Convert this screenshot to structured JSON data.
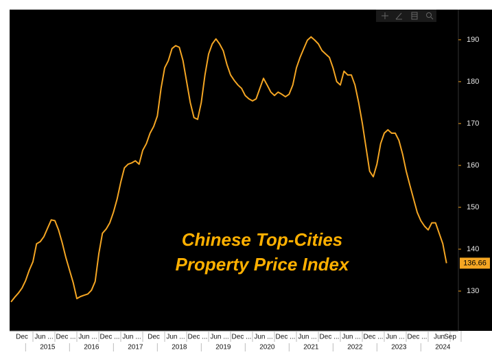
{
  "chart_data": {
    "type": "line",
    "annotation": [
      "Chinese Top-Cities",
      "Property Price Index"
    ],
    "x": [
      "2014-09",
      "2014-10",
      "2014-11",
      "2014-12",
      "2015-01",
      "2015-02",
      "2015-03",
      "2015-04",
      "2015-05",
      "2015-06",
      "2015-07",
      "2015-08",
      "2015-09",
      "2015-10",
      "2015-11",
      "2015-12",
      "2016-01",
      "2016-02",
      "2016-03",
      "2016-04",
      "2016-05",
      "2016-06",
      "2016-07",
      "2016-08",
      "2016-09",
      "2016-10",
      "2016-11",
      "2016-12",
      "2017-01",
      "2017-02",
      "2017-03",
      "2017-04",
      "2017-05",
      "2017-06",
      "2017-07",
      "2017-08",
      "2017-09",
      "2017-10",
      "2017-11",
      "2017-12",
      "2018-01",
      "2018-02",
      "2018-03",
      "2018-04",
      "2018-05",
      "2018-06",
      "2018-07",
      "2018-08",
      "2018-09",
      "2018-10",
      "2018-11",
      "2018-12",
      "2019-01",
      "2019-02",
      "2019-03",
      "2019-04",
      "2019-05",
      "2019-06",
      "2019-07",
      "2019-08",
      "2019-09",
      "2019-10",
      "2019-11",
      "2019-12",
      "2020-01",
      "2020-02",
      "2020-03",
      "2020-04",
      "2020-05",
      "2020-06",
      "2020-07",
      "2020-08",
      "2020-09",
      "2020-10",
      "2020-11",
      "2020-12",
      "2021-01",
      "2021-02",
      "2021-03",
      "2021-04",
      "2021-05",
      "2021-06",
      "2021-07",
      "2021-08",
      "2021-09",
      "2021-10",
      "2021-11",
      "2021-12",
      "2022-01",
      "2022-02",
      "2022-03",
      "2022-04",
      "2022-05",
      "2022-06",
      "2022-07",
      "2022-08",
      "2022-09",
      "2022-10",
      "2022-11",
      "2022-12",
      "2023-01",
      "2023-02",
      "2023-03",
      "2023-04",
      "2023-05",
      "2023-06",
      "2023-07",
      "2023-08",
      "2023-09",
      "2023-10",
      "2023-11",
      "2023-12",
      "2024-01",
      "2024-02",
      "2024-03",
      "2024-04",
      "2024-05",
      "2024-06",
      "2024-07",
      "2024-08"
    ],
    "series": [
      {
        "color": "#f5a623",
        "values": [
          127.4,
          128.5,
          129.5,
          130.7,
          132.5,
          135,
          137,
          141.3,
          141.8,
          143,
          145,
          147,
          146.8,
          144.6,
          141.5,
          138,
          135,
          132,
          128.2,
          128.7,
          129,
          129.3,
          130.2,
          132.3,
          138.9,
          143.8,
          144.8,
          146.3,
          148.8,
          152,
          156,
          159.4,
          160.3,
          160.6,
          161.1,
          160.3,
          163.6,
          165.2,
          167.7,
          169.3,
          171.8,
          178.4,
          183.3,
          185,
          187.9,
          188.6,
          188.2,
          185,
          180,
          175,
          171.4,
          171,
          175,
          181.6,
          186.6,
          189,
          190.2,
          189,
          187.4,
          184.1,
          181.6,
          180.3,
          179.2,
          178.4,
          176.7,
          175.9,
          175.4,
          175.9,
          178.4,
          180.8,
          179.2,
          177.5,
          176.7,
          177.5,
          177,
          176.4,
          177,
          179.2,
          183.3,
          185.8,
          187.9,
          189.9,
          190.7,
          189.9,
          189,
          187.4,
          186.6,
          185.8,
          183.3,
          180,
          179.2,
          182.5,
          181.6,
          181.6,
          179.2,
          175,
          170.1,
          164.4,
          158.6,
          157.3,
          160.3,
          165.2,
          167.7,
          168.5,
          167.7,
          167.7,
          166,
          162.7,
          158.6,
          155.3,
          152,
          148.8,
          146.8,
          145.5,
          144.6,
          146.3,
          146.3,
          143.8,
          141.3,
          136.66
        ]
      }
    ],
    "ylim": [
      120.5,
      197.2
    ],
    "yticks": [
      130,
      140,
      150,
      160,
      170,
      180,
      190
    ],
    "xticks": [
      {
        "value": "2014-12",
        "label": "Dec"
      },
      {
        "value": "2015-06",
        "label": "Jun ..."
      },
      {
        "value": "2015-12",
        "label": "Dec ..."
      },
      {
        "value": "2016-06",
        "label": "Jun ..."
      },
      {
        "value": "2016-12",
        "label": "Dec ..."
      },
      {
        "value": "2017-06",
        "label": "Jun ..."
      },
      {
        "value": "2017-12",
        "label": "Dec"
      },
      {
        "value": "2018-06",
        "label": "Jun ..."
      },
      {
        "value": "2018-12",
        "label": "Dec ..."
      },
      {
        "value": "2019-06",
        "label": "Jun ..."
      },
      {
        "value": "2019-12",
        "label": "Dec ..."
      },
      {
        "value": "2020-06",
        "label": "Jun ..."
      },
      {
        "value": "2020-12",
        "label": "Dec ..."
      },
      {
        "value": "2021-06",
        "label": "Jun ..."
      },
      {
        "value": "2021-12",
        "label": "Dec ..."
      },
      {
        "value": "2022-06",
        "label": "Jun ..."
      },
      {
        "value": "2022-12",
        "label": "Dec ..."
      },
      {
        "value": "2023-06",
        "label": "Jun ..."
      },
      {
        "value": "2023-12",
        "label": "Dec ..."
      },
      {
        "value": "2024-06",
        "label": "Jun"
      },
      {
        "value": "2024-09",
        "label": "Sep"
      }
    ],
    "years": [
      "2015",
      "2016",
      "2017",
      "2018",
      "2019",
      "2020",
      "2021",
      "2022",
      "2023",
      "2024"
    ],
    "y_axis_side": "right"
  }
}
